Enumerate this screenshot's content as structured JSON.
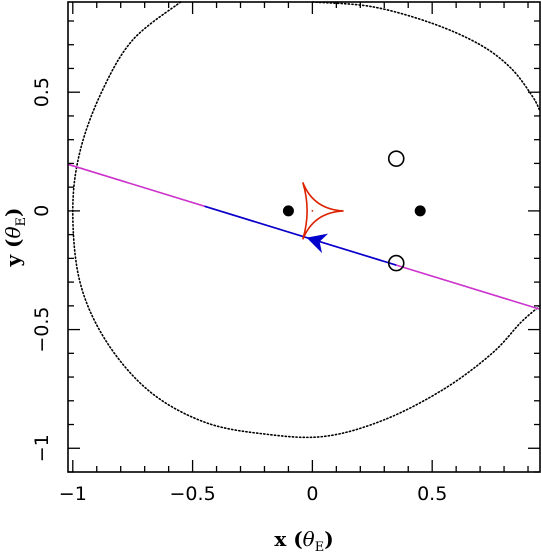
{
  "chart_data": {
    "type": "scatter",
    "title": "",
    "xlabel": {
      "main": "x (",
      "symbol": "θ",
      "sub": "E",
      "close": ")"
    },
    "ylabel": {
      "main": "y (",
      "symbol": "θ",
      "sub": "E",
      "close": ")"
    },
    "xlim": [
      -1.02,
      0.95
    ],
    "ylim": [
      -1.1,
      0.88
    ],
    "xticks": [
      -1,
      -0.5,
      0,
      0.5
    ],
    "yticks": [
      -1,
      -0.5,
      0,
      0.5
    ],
    "xtick_labels": [
      "−1",
      "−0.5",
      "0",
      "0.5"
    ],
    "ytick_labels": [
      "−1",
      "−0.5",
      "0",
      "0.5"
    ],
    "grid": false,
    "lenses": [
      {
        "x": -0.1,
        "y": 0.0
      },
      {
        "x": 0.45,
        "y": 0.0
      }
    ],
    "images": [
      {
        "x": 0.35,
        "y": 0.22
      },
      {
        "x": 0.35,
        "y": -0.22
      }
    ],
    "caustic": {
      "color": "#dd2200",
      "cusps": [
        {
          "x": 0.13,
          "y": 0.0
        },
        {
          "x": -0.04,
          "y": 0.12
        },
        {
          "x": -0.04,
          "y": -0.12
        }
      ],
      "center": {
        "x": 0.0,
        "y": 0.0
      }
    },
    "critical_curve": {
      "color": "#000000",
      "style": "dotted",
      "points": [
        [
          -0.55,
          0.88
        ],
        [
          -0.75,
          0.72
        ],
        [
          -0.88,
          0.5
        ],
        [
          -0.97,
          0.25
        ],
        [
          -1.0,
          0.0
        ],
        [
          -0.97,
          -0.3
        ],
        [
          -0.86,
          -0.55
        ],
        [
          -0.68,
          -0.76
        ],
        [
          -0.45,
          -0.89
        ],
        [
          -0.2,
          -0.94
        ],
        [
          0.05,
          -0.95
        ],
        [
          0.3,
          -0.88
        ],
        [
          0.55,
          -0.75
        ],
        [
          0.75,
          -0.6
        ],
        [
          0.87,
          -0.47
        ],
        [
          0.95,
          -0.4
        ]
      ],
      "points_right": [
        [
          0.0,
          0.88
        ],
        [
          0.25,
          0.86
        ],
        [
          0.5,
          0.79
        ],
        [
          0.7,
          0.7
        ],
        [
          0.83,
          0.6
        ],
        [
          0.92,
          0.48
        ],
        [
          0.95,
          0.42
        ]
      ]
    },
    "trajectory": {
      "color": "#cc33cc",
      "slope": -0.31,
      "intercept": -0.12,
      "x_range": [
        -1.02,
        0.95
      ]
    },
    "trajectory_segment": {
      "color": "#0000cc",
      "x_range": [
        -0.45,
        0.35
      ]
    },
    "arrow": {
      "color": "#0000cc",
      "x": -0.02,
      "y": -0.114,
      "direction": "left"
    }
  }
}
